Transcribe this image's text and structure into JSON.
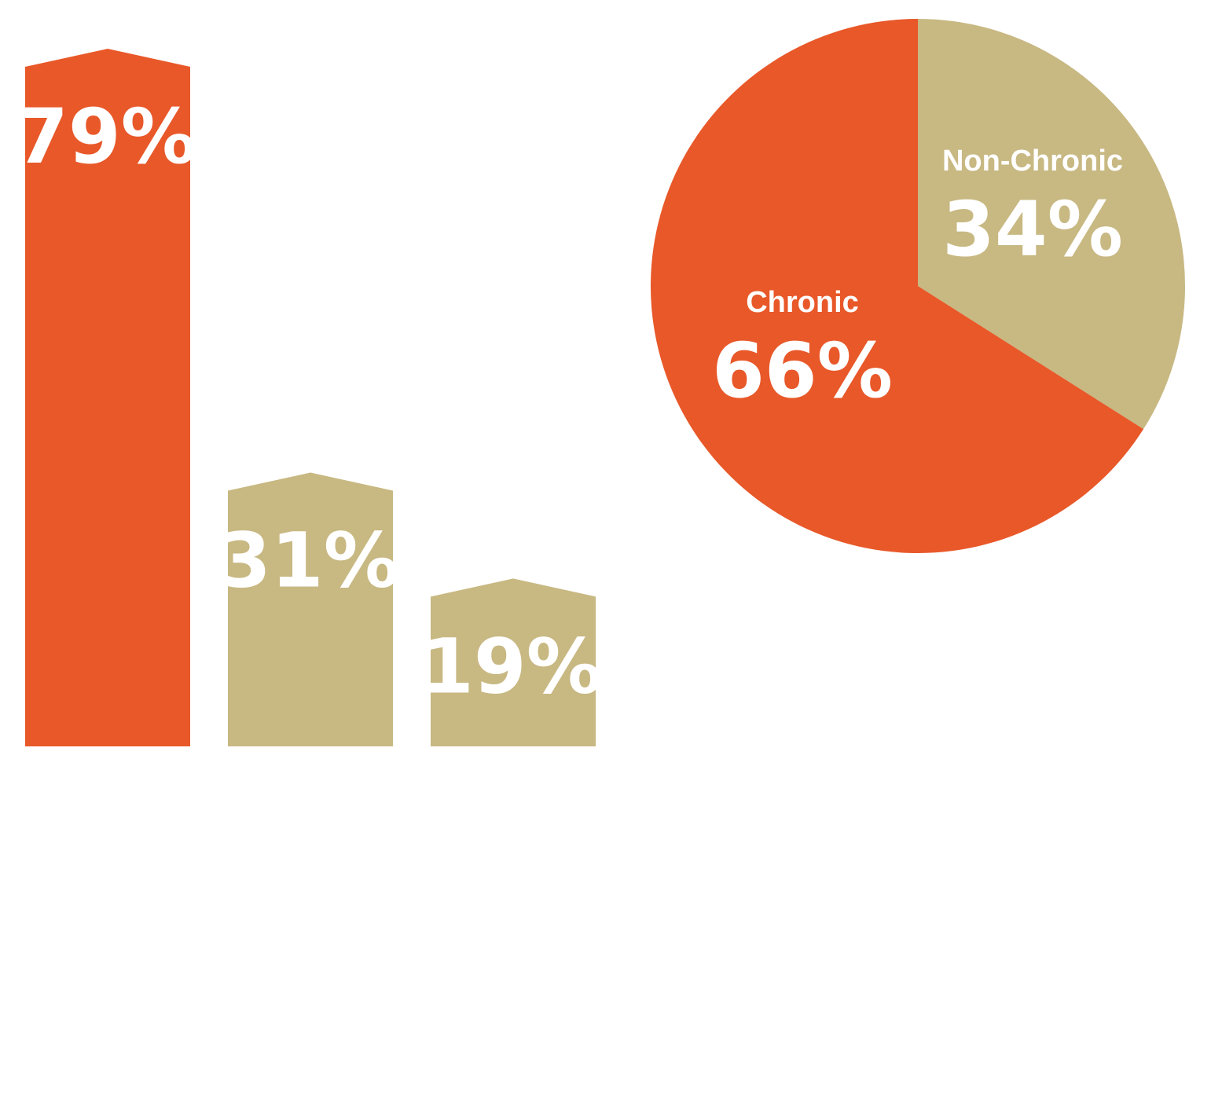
{
  "chart_data": [
    {
      "type": "bar",
      "values": [
        79,
        31,
        19
      ],
      "labels": [
        "79%",
        "31%",
        "19%"
      ],
      "colors": [
        "#e85829",
        "#c8b882",
        "#c8b882"
      ],
      "ylim": [
        0,
        100
      ]
    },
    {
      "type": "pie",
      "slices": [
        {
          "name": "Non-Chronic",
          "value": 34,
          "label": "34%",
          "color": "#c8b882"
        },
        {
          "name": "Chronic",
          "value": 66,
          "label": "66%",
          "color": "#e85829"
        }
      ]
    }
  ]
}
